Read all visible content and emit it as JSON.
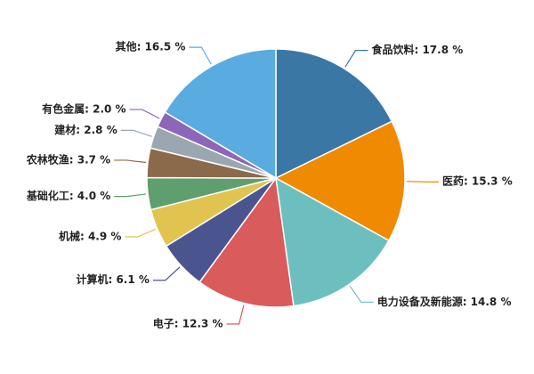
{
  "chart_data": {
    "type": "pie",
    "labels": [
      "食品饮料: 17.8 %",
      "医药: 15.3 %",
      "电力设备及新能源: 14.8 %",
      "电子: 12.3 %",
      "计算机: 6.1 %",
      "机械: 4.9 %",
      "基础化工: 4.0 %",
      "农林牧渔: 3.7 %",
      "建材: 2.8 %",
      "有色金属: 2.0 %",
      "其他: 16.5 %"
    ],
    "values": [
      17.8,
      15.3,
      14.8,
      12.3,
      6.1,
      4.9,
      4.0,
      3.7,
      2.8,
      2.0,
      16.5
    ],
    "colors": [
      "#3a77a5",
      "#f08a00",
      "#6dbfbf",
      "#d95b5b",
      "#4a5590",
      "#e1c44f",
      "#5f9e6e",
      "#8b6a4c",
      "#9aa7b0",
      "#8c66b8",
      "#5aabdf"
    ]
  }
}
